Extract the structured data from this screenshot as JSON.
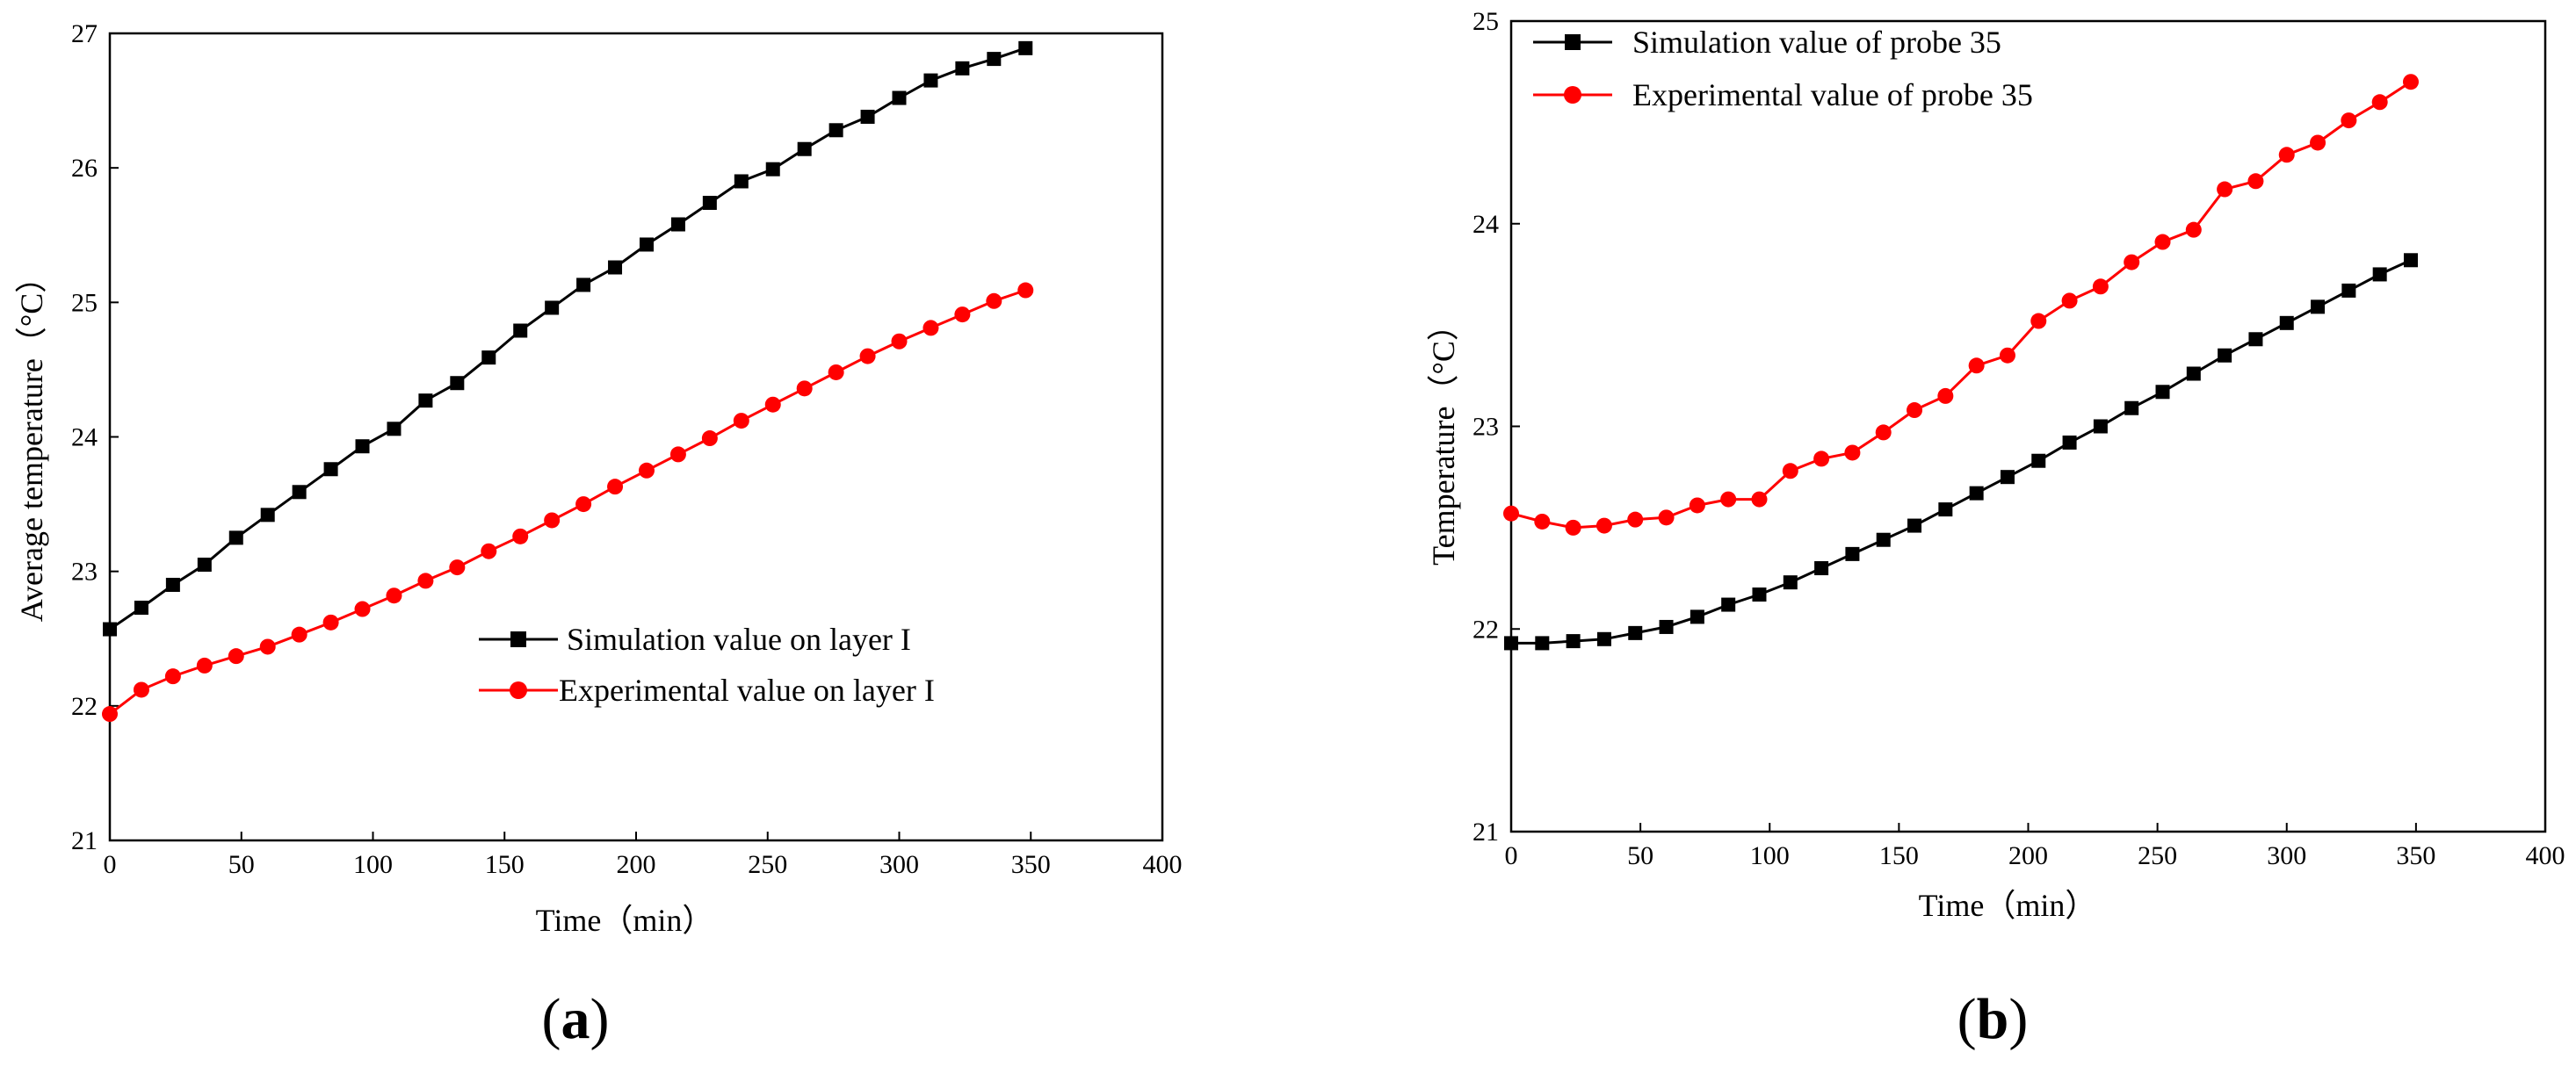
{
  "chart_data": [
    {
      "type": "line",
      "panel_label": "(a)",
      "title": "",
      "xlabel": "Time（min）",
      "ylabel": "Average temperature（°C）",
      "xlim": [
        0,
        400
      ],
      "ylim": [
        21,
        27
      ],
      "xticks": [
        0,
        50,
        100,
        150,
        200,
        250,
        300,
        350,
        400
      ],
      "yticks": [
        21,
        22,
        23,
        24,
        25,
        26,
        27
      ],
      "grid": false,
      "legend_position": "center-right",
      "x": [
        0,
        12,
        24,
        36,
        48,
        60,
        72,
        84,
        96,
        108,
        120,
        132,
        144,
        156,
        168,
        180,
        192,
        204,
        216,
        228,
        240,
        252,
        264,
        276,
        288,
        300,
        312,
        324,
        336,
        348
      ],
      "series": [
        {
          "name": "Simulation value on layer I",
          "color": "#000000",
          "marker": "square",
          "values": [
            22.57,
            22.73,
            22.9,
            23.05,
            23.25,
            23.42,
            23.59,
            23.76,
            23.93,
            24.06,
            24.27,
            24.4,
            24.59,
            24.79,
            24.96,
            25.13,
            25.26,
            25.43,
            25.58,
            25.74,
            25.9,
            25.99,
            26.14,
            26.28,
            26.38,
            26.52,
            26.65,
            26.74,
            26.81,
            26.89
          ]
        },
        {
          "name": "Experimental value on layer I",
          "color": "#ff0000",
          "marker": "circle",
          "values": [
            21.94,
            22.12,
            22.22,
            22.3,
            22.37,
            22.44,
            22.53,
            22.62,
            22.72,
            22.82,
            22.93,
            23.03,
            23.15,
            23.26,
            23.38,
            23.5,
            23.63,
            23.75,
            23.87,
            23.99,
            24.12,
            24.24,
            24.36,
            24.48,
            24.6,
            24.71,
            24.81,
            24.91,
            25.01,
            25.09
          ]
        }
      ]
    },
    {
      "type": "line",
      "panel_label": "(b)",
      "title": "",
      "xlabel": "Time（min）",
      "ylabel": "Temperature（°C）",
      "xlim": [
        0,
        400
      ],
      "ylim": [
        21,
        25
      ],
      "xticks": [
        0,
        50,
        100,
        150,
        200,
        250,
        300,
        350,
        400
      ],
      "yticks": [
        21,
        22,
        23,
        24,
        25
      ],
      "grid": false,
      "legend_position": "top-left",
      "x": [
        0,
        12,
        24,
        36,
        48,
        60,
        72,
        84,
        96,
        108,
        120,
        132,
        144,
        156,
        168,
        180,
        192,
        204,
        216,
        228,
        240,
        252,
        264,
        276,
        288,
        300,
        312,
        324,
        336,
        348
      ],
      "series": [
        {
          "name": "Simulation value of probe 35",
          "color": "#000000",
          "marker": "square",
          "values": [
            21.93,
            21.93,
            21.94,
            21.95,
            21.98,
            22.01,
            22.06,
            22.12,
            22.17,
            22.23,
            22.3,
            22.37,
            22.44,
            22.51,
            22.59,
            22.67,
            22.75,
            22.83,
            22.92,
            23.0,
            23.09,
            23.17,
            23.26,
            23.35,
            23.43,
            23.51,
            23.59,
            23.67,
            23.75,
            23.82
          ]
        },
        {
          "name": "Experimental value of probe 35",
          "color": "#ff0000",
          "marker": "circle",
          "values": [
            22.57,
            22.53,
            22.5,
            22.51,
            22.54,
            22.55,
            22.61,
            22.64,
            22.64,
            22.78,
            22.84,
            22.87,
            22.97,
            23.08,
            23.15,
            23.3,
            23.35,
            23.52,
            23.62,
            23.69,
            23.81,
            23.91,
            23.97,
            24.17,
            24.21,
            24.34,
            24.4,
            24.51,
            24.6,
            24.7
          ]
        }
      ]
    }
  ]
}
